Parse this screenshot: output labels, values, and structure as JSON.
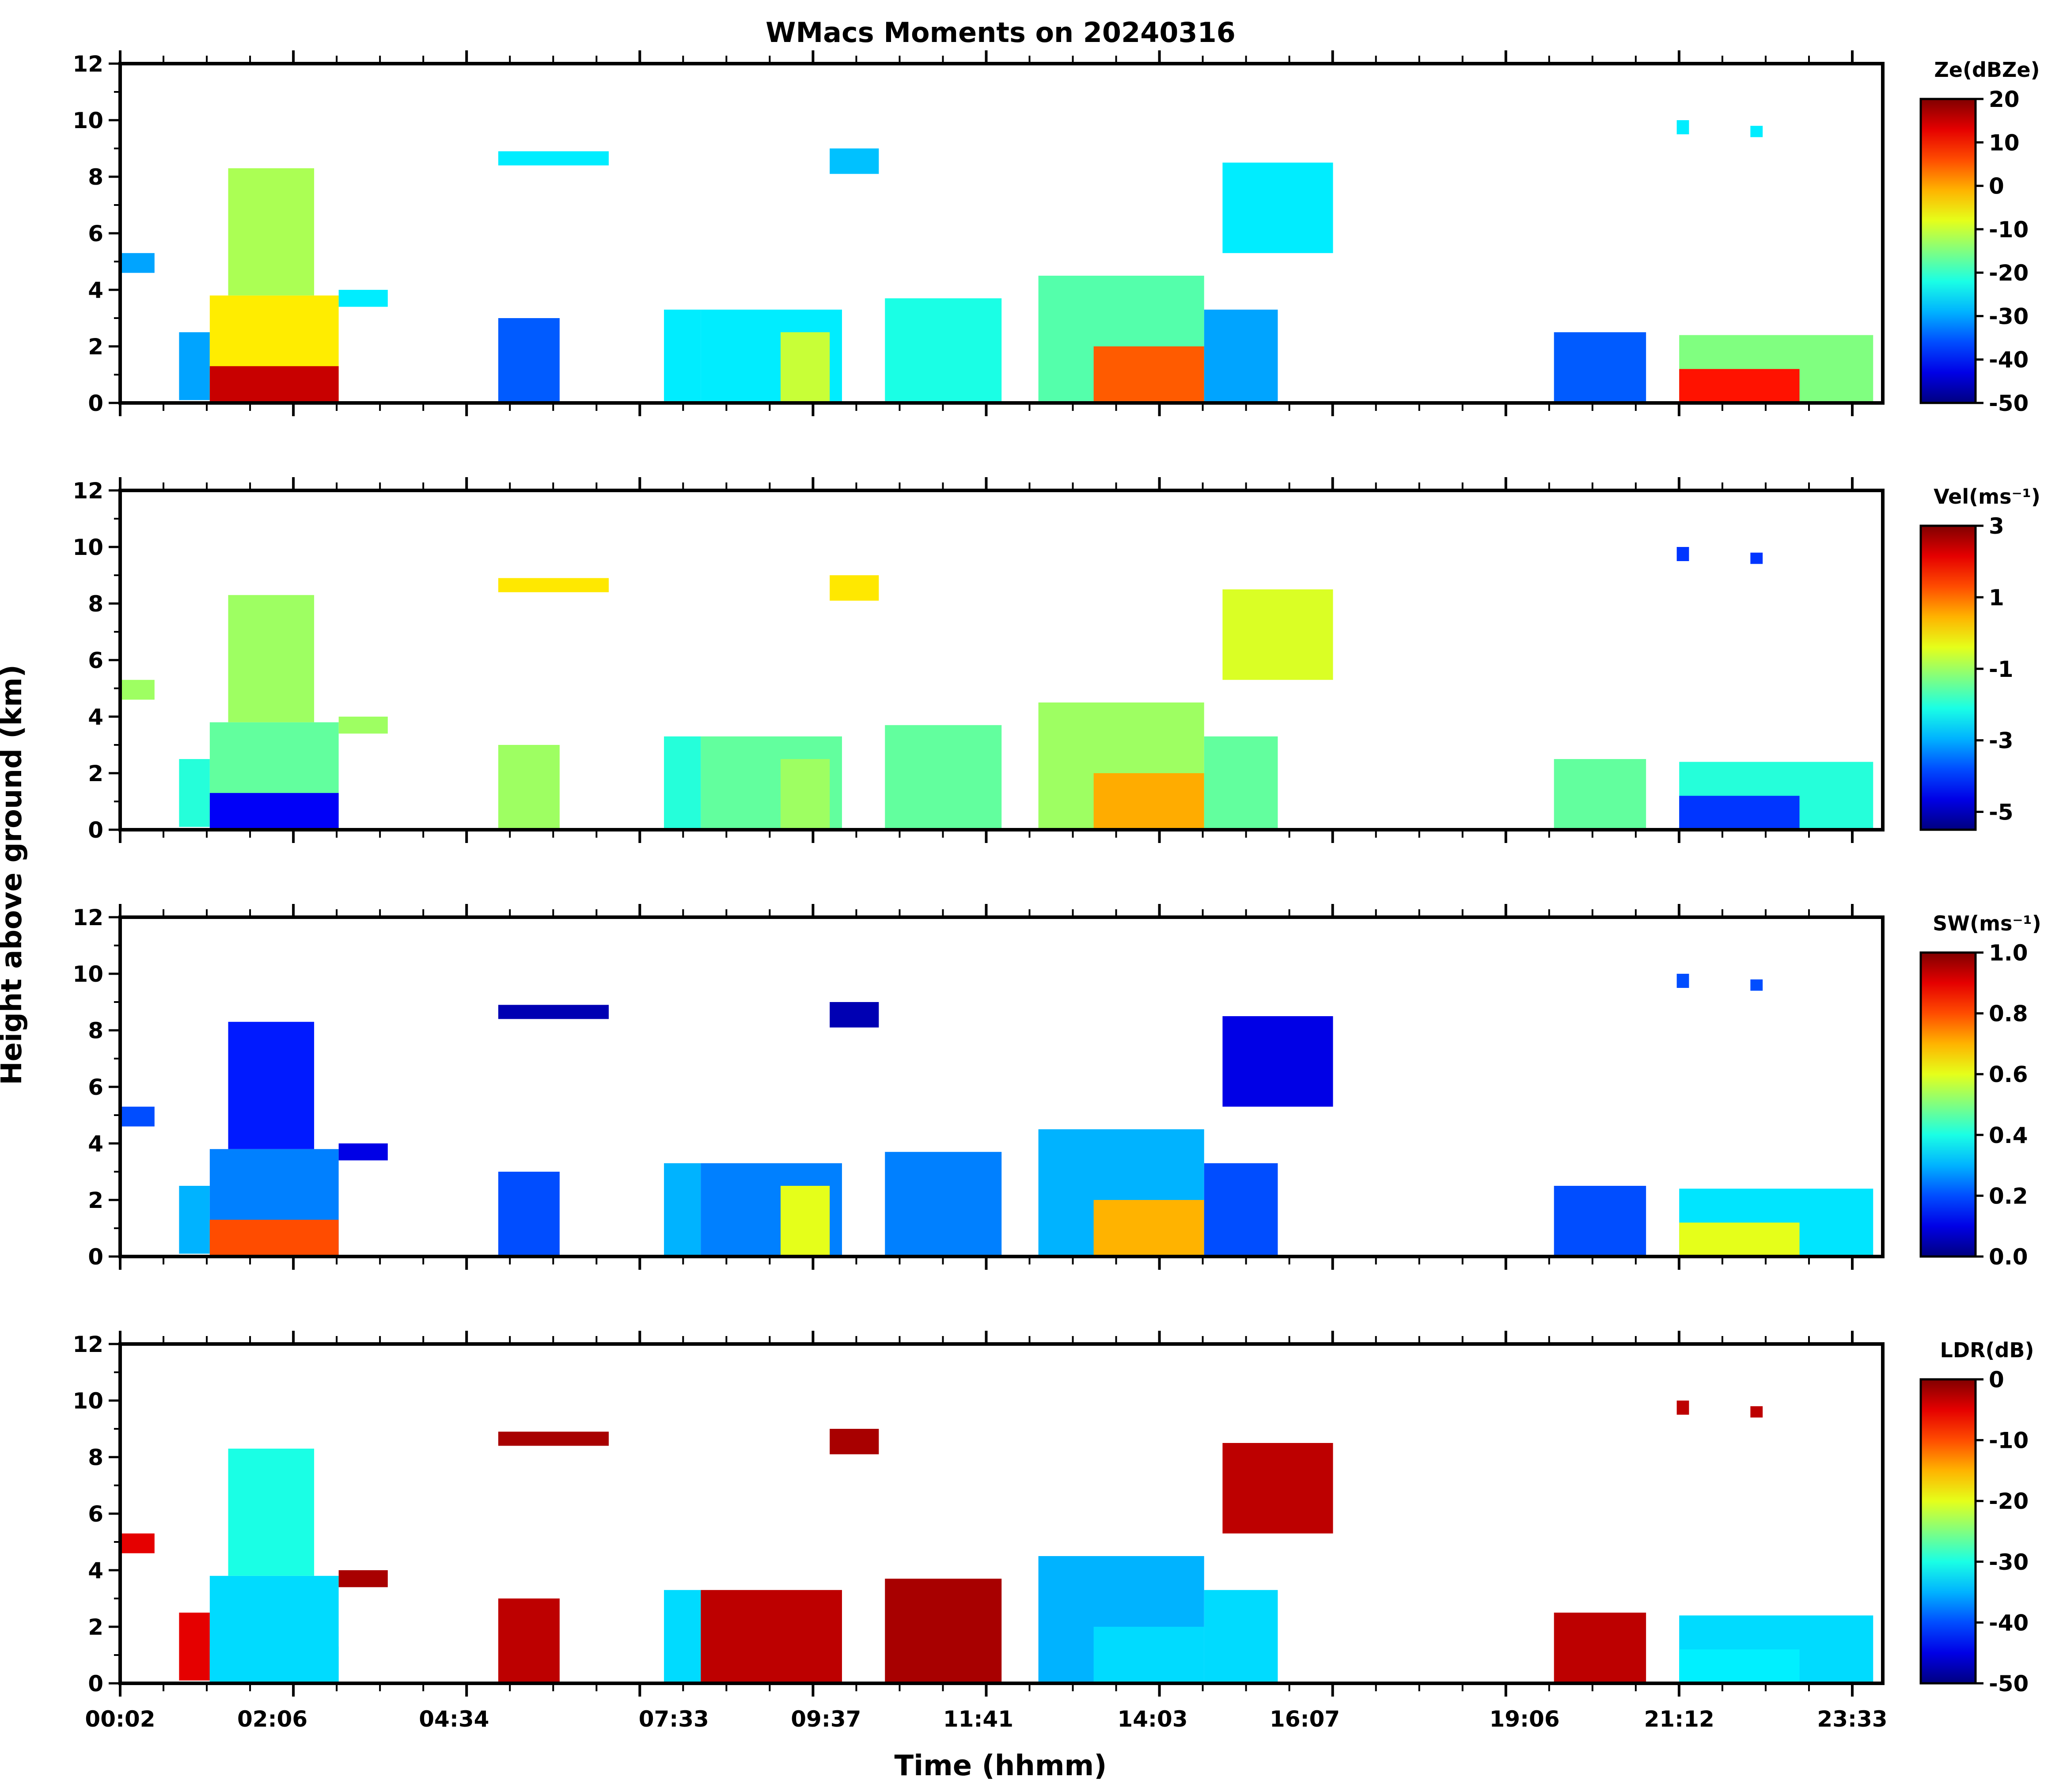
{
  "chart_data": {
    "type": "heatmap",
    "title": "WMacs Moments on 20240316",
    "xlabel": "Time (hhmm)",
    "ylabel": "Height above ground (km)",
    "x_ticklabels": [
      "00:02",
      "02:06",
      "04:34",
      "07:33",
      "09:37",
      "11:41",
      "14:03",
      "16:07",
      "19:06",
      "21:12",
      "23:33"
    ],
    "ylim": [
      0,
      12
    ],
    "y_ticks": [
      0,
      2,
      4,
      6,
      8,
      10,
      12
    ],
    "panels": [
      {
        "name": "reflectivity",
        "colorbar_label": "Ze(dBZe)",
        "clim": [
          -50,
          20
        ],
        "colorbar_ticks": [
          "20",
          "10",
          "0",
          "-10",
          "-20",
          "-30",
          "-40",
          "-50"
        ]
      },
      {
        "name": "velocity",
        "colorbar_label": "Vel(ms⁻¹)",
        "clim": [
          -5.5,
          3
        ],
        "colorbar_ticks": [
          "3",
          "1",
          "-1",
          "-3",
          "-5"
        ]
      },
      {
        "name": "spectral-width",
        "colorbar_label": "SW(ms⁻¹)",
        "clim": [
          0,
          1
        ],
        "colorbar_ticks": [
          "1.0",
          "0.8",
          "0.6",
          "0.4",
          "0.2",
          "0.0"
        ]
      },
      {
        "name": "ldr",
        "colorbar_label": "LDR(dB)",
        "clim": [
          -50,
          0
        ],
        "colorbar_ticks": [
          "0",
          "-10",
          "-20",
          "-30",
          "-40",
          "-50"
        ]
      }
    ],
    "cloud_features": [
      {
        "start": "00:02",
        "end": "00:30",
        "base_km": 4.6,
        "top_km": 5.3,
        "ze": -30,
        "vel": -1,
        "sw": 0.2,
        "ldr": -5
      },
      {
        "start": "00:50",
        "end": "01:15",
        "base_km": 0.1,
        "top_km": 2.5,
        "ze": -30,
        "vel": -2,
        "sw": 0.3,
        "ldr": -5
      },
      {
        "start": "01:15",
        "end": "03:00",
        "base_km": 0.0,
        "top_km": 3.8,
        "ze": -5,
        "vel": -1.5,
        "sw": 0.25,
        "ldr": -33
      },
      {
        "start": "01:30",
        "end": "02:40",
        "base_km": 3.8,
        "top_km": 8.3,
        "ze": -12,
        "vel": -1,
        "sw": 0.15,
        "ldr": -30
      },
      {
        "start": "01:15",
        "end": "03:00",
        "base_km": 0.0,
        "top_km": 1.3,
        "ze": 15,
        "vel": -4.5,
        "sw": 0.8,
        "ldr": -33
      },
      {
        "start": "03:00",
        "end": "03:40",
        "base_km": 3.4,
        "top_km": 4.0,
        "ze": -25,
        "vel": -1,
        "sw": 0.1,
        "ldr": -2
      },
      {
        "start": "05:10",
        "end": "06:40",
        "base_km": 8.4,
        "top_km": 8.9,
        "ze": -25,
        "vel": 0,
        "sw": 0.05,
        "ldr": -2
      },
      {
        "start": "05:10",
        "end": "06:00",
        "base_km": 0.0,
        "top_km": 3.0,
        "ze": -35,
        "vel": -1,
        "sw": 0.2,
        "ldr": -3
      },
      {
        "start": "07:25",
        "end": "07:55",
        "base_km": 0.0,
        "top_km": 3.3,
        "ze": -25,
        "vel": -2,
        "sw": 0.3,
        "ldr": -33
      },
      {
        "start": "07:55",
        "end": "09:50",
        "base_km": 0.0,
        "top_km": 3.3,
        "ze": -25,
        "vel": -1.5,
        "sw": 0.25,
        "ldr": -3
      },
      {
        "start": "09:00",
        "end": "09:40",
        "base_km": 0.0,
        "top_km": 2.5,
        "ze": -10,
        "vel": -1,
        "sw": 0.6,
        "ldr": -3
      },
      {
        "start": "09:40",
        "end": "10:20",
        "base_km": 8.1,
        "top_km": 9.0,
        "ze": -28,
        "vel": 0,
        "sw": 0.05,
        "ldr": -2
      },
      {
        "start": "10:25",
        "end": "12:00",
        "base_km": 0.0,
        "top_km": 3.7,
        "ze": -22,
        "vel": -1.5,
        "sw": 0.25,
        "ldr": -2
      },
      {
        "start": "12:30",
        "end": "14:45",
        "base_km": 0.0,
        "top_km": 4.5,
        "ze": -18,
        "vel": -1,
        "sw": 0.3,
        "ldr": -35
      },
      {
        "start": "13:15",
        "end": "14:45",
        "base_km": 0.0,
        "top_km": 2.0,
        "ze": 5,
        "vel": 0.5,
        "sw": 0.7,
        "ldr": -33
      },
      {
        "start": "14:45",
        "end": "15:45",
        "base_km": 0.0,
        "top_km": 3.3,
        "ze": -30,
        "vel": -1.5,
        "sw": 0.2,
        "ldr": -33
      },
      {
        "start": "15:00",
        "end": "16:30",
        "base_km": 5.3,
        "top_km": 8.5,
        "ze": -25,
        "vel": -0.5,
        "sw": 0.1,
        "ldr": -3
      },
      {
        "start": "19:30",
        "end": "20:45",
        "base_km": 0.0,
        "top_km": 2.5,
        "ze": -35,
        "vel": -1.5,
        "sw": 0.2,
        "ldr": -3
      },
      {
        "start": "21:10",
        "end": "21:20",
        "base_km": 9.5,
        "top_km": 10.0,
        "ze": -25,
        "vel": -4,
        "sw": 0.2,
        "ldr": -3
      },
      {
        "start": "22:10",
        "end": "22:20",
        "base_km": 9.4,
        "top_km": 9.8,
        "ze": -25,
        "vel": -4,
        "sw": 0.2,
        "ldr": -3
      },
      {
        "start": "21:12",
        "end": "23:50",
        "base_km": 0.0,
        "top_km": 2.4,
        "ze": -15,
        "vel": -2,
        "sw": 0.35,
        "ldr": -33
      },
      {
        "start": "21:12",
        "end": "22:50",
        "base_km": 0.0,
        "top_km": 1.2,
        "ze": 10,
        "vel": -4,
        "sw": 0.6,
        "ldr": -32
      }
    ]
  }
}
